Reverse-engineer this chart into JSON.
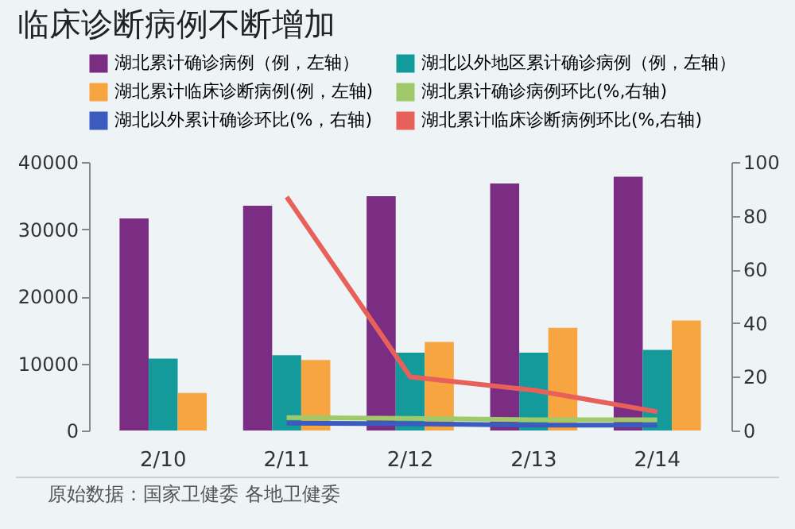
{
  "chart_data": {
    "type": "bar",
    "title": "临床诊断病例不断增加",
    "categories": [
      "2/10",
      "2/11",
      "2/12",
      "2/13",
      "2/14"
    ],
    "series": [
      {
        "name": "湖北累计确诊病例（例，左轴）",
        "color": "#7b2c83",
        "values": [
          31600,
          33500,
          34900,
          36800,
          37800
        ]
      },
      {
        "name": "湖北以外地区累计确诊病例（例，左轴）",
        "color": "#159a9c",
        "values": [
          10700,
          11200,
          11600,
          11600,
          12000
        ]
      },
      {
        "name": "湖北累计临床诊断病例(例，左轴)",
        "color": "#f7a541",
        "values": [
          5600,
          10500,
          13200,
          15300,
          16400
        ]
      },
      {
        "name": "湖北累计确诊病例环比(%,右轴)",
        "color": "#a0c96a",
        "type": "line",
        "axis": "y2",
        "values": [
          null,
          4.8,
          4.5,
          4,
          4
        ]
      },
      {
        "name": "湖北以外累计确诊环比(%，右轴)",
        "color": "#3b5bbf",
        "type": "line",
        "axis": "y2",
        "values": [
          null,
          2.7,
          2.5,
          2,
          2
        ]
      },
      {
        "name": "湖北累计临床诊断病例环比(%,右轴)",
        "color": "#e8605a",
        "type": "line",
        "axis": "y2",
        "values": [
          null,
          87,
          20,
          15,
          7
        ]
      }
    ],
    "ylim": [
      0,
      40000
    ],
    "yticks": [
      0,
      10000,
      20000,
      30000,
      40000
    ],
    "y2lim": [
      0,
      100
    ],
    "y2ticks": [
      0,
      20,
      40,
      60,
      80,
      100
    ],
    "legend": "top",
    "grid": false,
    "annotations": [
      "原始数据：国家卫健委 各地卫健委"
    ]
  }
}
